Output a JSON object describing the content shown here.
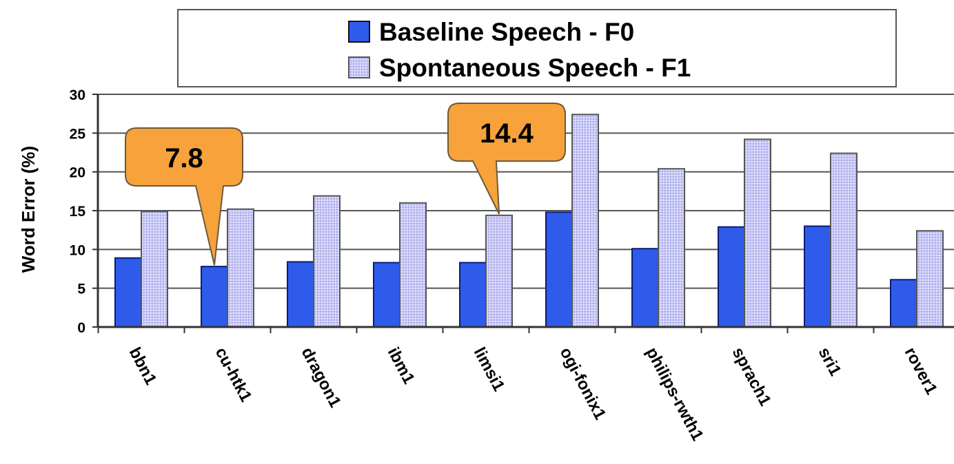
{
  "chart_data": {
    "type": "bar",
    "ylabel": "Word Error (%)",
    "xlabel": "",
    "ylim": [
      0,
      30
    ],
    "yticks": [
      0,
      5,
      10,
      15,
      20,
      25,
      30
    ],
    "grid": true,
    "legend_position": "top",
    "categories": [
      "bbn1",
      "cu-htk1",
      "dragon1",
      "ibm1",
      "limsi1",
      "ogi-fonix1",
      "philips-rwth1",
      "sprach1",
      "sri1",
      "rover1"
    ],
    "series": [
      {
        "name": "Baseline Speech - F0",
        "color": "#2f5bea",
        "values": [
          8.9,
          7.8,
          8.4,
          8.3,
          8.3,
          14.8,
          10.1,
          12.9,
          13.0,
          6.1
        ]
      },
      {
        "name": "Spontaneous Speech - F1",
        "color": "#c6c6f4",
        "values": [
          14.9,
          15.2,
          16.9,
          16.0,
          14.4,
          27.4,
          20.4,
          24.2,
          22.4,
          12.4
        ]
      }
    ],
    "annotations": [
      {
        "text": "7.8",
        "category": "cu-htk1",
        "series": "Baseline Speech - F0"
      },
      {
        "text": "14.4",
        "category": "limsi1",
        "series": "Spontaneous Speech - F1"
      }
    ]
  }
}
